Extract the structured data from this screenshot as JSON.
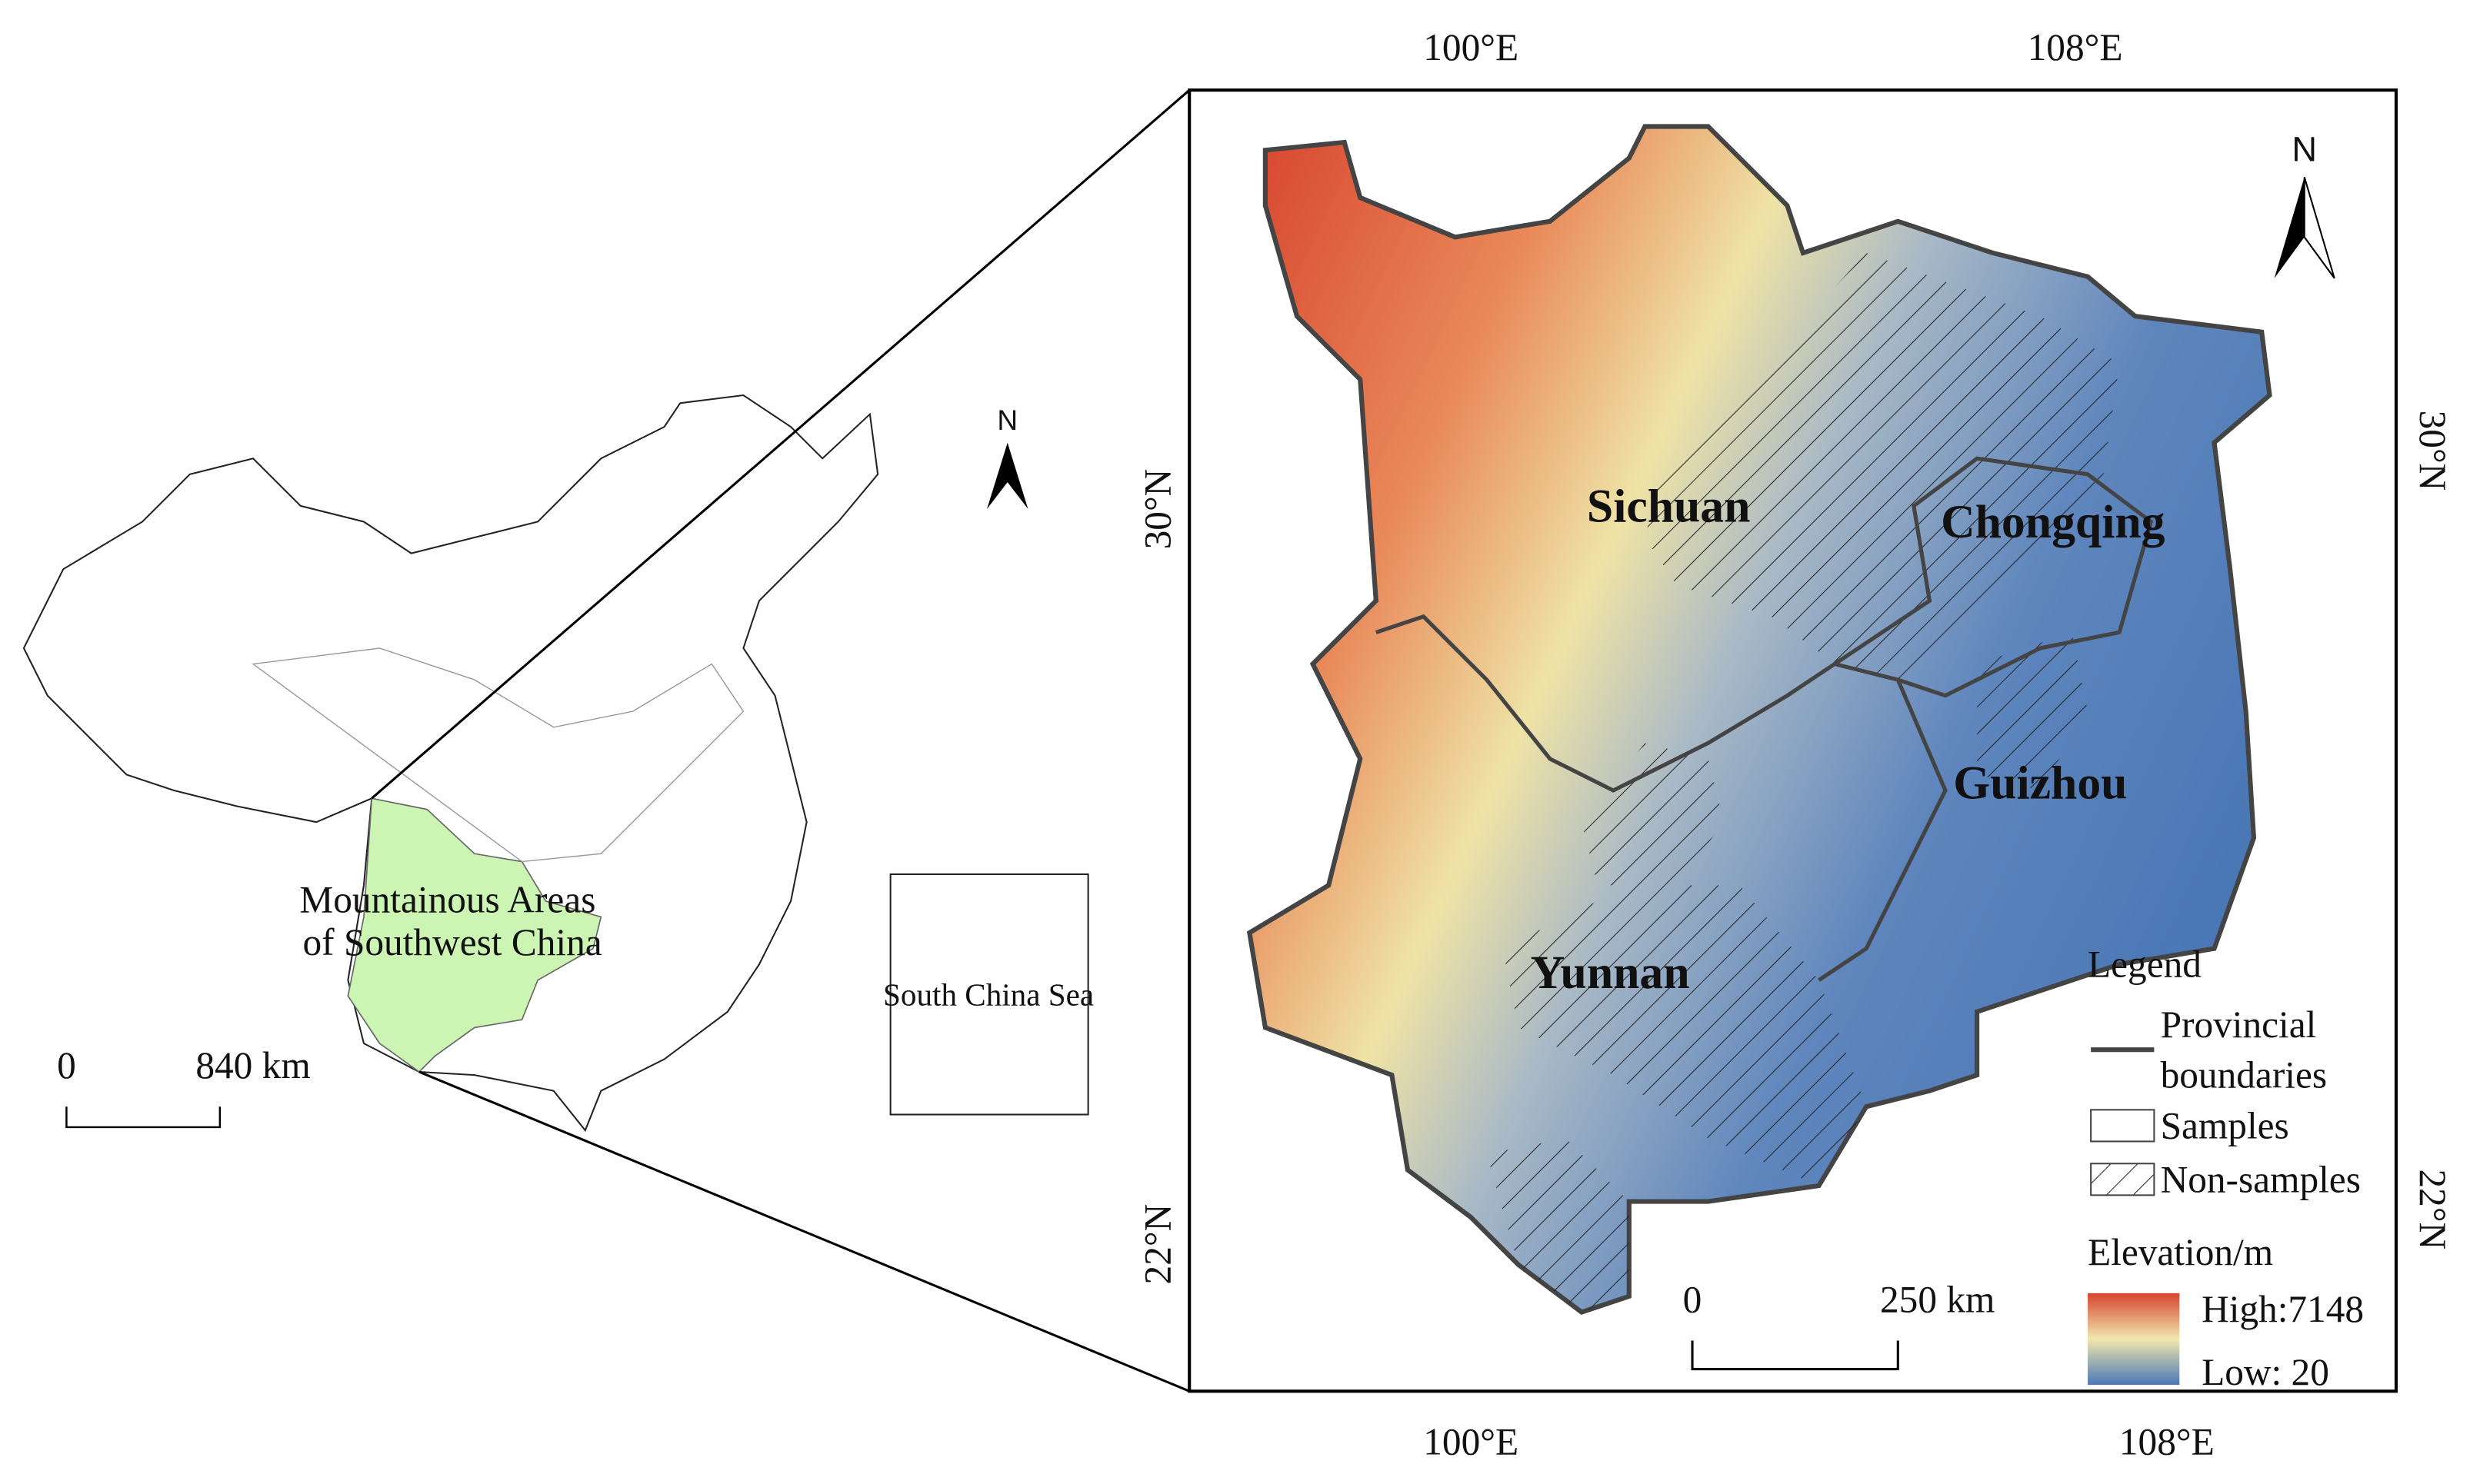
{
  "inset_map": {
    "region_label": [
      "Mountainous Areas",
      "of Southwest China"
    ],
    "north_label": "N",
    "scale_bar": {
      "start": "0",
      "end": "840 km"
    },
    "south_china_sea": "South China Sea"
  },
  "main_map": {
    "top_ticks": [
      "100°E",
      "108°E"
    ],
    "bottom_ticks": [
      "100°E",
      "108°E"
    ],
    "left_ticks": [
      "30°N",
      "22°N"
    ],
    "right_ticks": [
      "30°N",
      "22°N"
    ],
    "north_label": "N",
    "provinces": [
      "Sichuan",
      "Chongqing",
      "Guizhou",
      "Yunnan"
    ],
    "scale_bar": {
      "start": "0",
      "end": "250 km"
    }
  },
  "legend": {
    "title": "Legend",
    "boundaries": [
      "Provincial",
      "boundaries"
    ],
    "samples": "Samples",
    "non_samples": "Non-samples",
    "elevation_title": "Elevation/m",
    "high": "High:7148",
    "low": "Low: 20"
  }
}
